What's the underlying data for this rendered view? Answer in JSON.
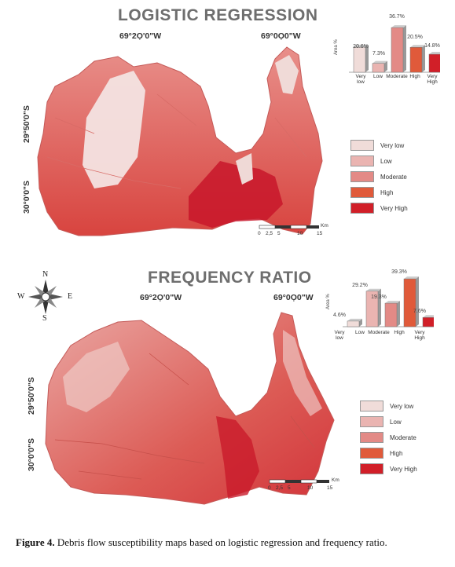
{
  "colors": {
    "very_low": "#f0dcd9",
    "low": "#eab4b1",
    "moderate": "#e38a86",
    "high": "#e05a3a",
    "very_high": "#d11f28"
  },
  "panels": [
    {
      "title": "LOGISTIC REGRESSION",
      "lon_left": "69°2Ọ'0\"W",
      "lon_right": "69°0Ọ0\"W",
      "lat_top": "29°50'0\"S",
      "lat_bottom": "30°0'0\"S",
      "y_axis_title": "Area %",
      "chart_data": {
        "type": "bar",
        "categories": [
          "Very low",
          "Low",
          "Moderate",
          "High",
          "Very High"
        ],
        "values": [
          20.6,
          7.3,
          36.7,
          20.5,
          14.8
        ],
        "value_labels": [
          "20.6%",
          "7.3%",
          "36.7%",
          "20.5%",
          "14.8%"
        ],
        "category_labels": [
          "Very\nlow",
          "Low",
          "Moderate",
          "High",
          "Very\nHigh"
        ],
        "ylabel": "Area %",
        "ylim": [
          0,
          40
        ]
      },
      "legend": [
        "Very low",
        "Low",
        "Moderate",
        "High",
        "Very High"
      ],
      "scale": {
        "ticks": [
          "0",
          "2,5",
          "5",
          "10",
          "15"
        ],
        "unit": "Km"
      }
    },
    {
      "title": "FREQUENCY RATIO",
      "lon_left": "69°2Ọ'0\"W",
      "lon_right": "69°0Ọ0\"W",
      "lat_top": "29°50'0\"S",
      "lat_bottom": "30°0'0\"S",
      "y_axis_title": "Area %",
      "chart_data": {
        "type": "bar",
        "categories": [
          "Very low",
          "Low",
          "Moderate",
          "High",
          "Very High"
        ],
        "values": [
          4.6,
          29.2,
          19.3,
          39.3,
          7.6
        ],
        "value_labels": [
          "4.6%",
          "29.2%",
          "19.3%",
          "39.3%",
          "7.6%"
        ],
        "category_labels": [
          "Very\nlow",
          "Low",
          "Moderate",
          "High",
          "Very\nHigh"
        ],
        "ylabel": "Area %",
        "ylim": [
          0,
          40
        ]
      },
      "legend": [
        "Very low",
        "Low",
        "Moderate",
        "High",
        "Very High"
      ],
      "scale": {
        "ticks": [
          "0",
          "2,5",
          "5",
          "10",
          "15"
        ],
        "unit": "Km"
      }
    }
  ],
  "compass": {
    "n": "N",
    "s": "S",
    "e": "E",
    "w": "W"
  },
  "caption": {
    "label": "Figure 4.",
    "text": " Debris flow susceptibility maps based on logistic regression and frequency ratio."
  }
}
